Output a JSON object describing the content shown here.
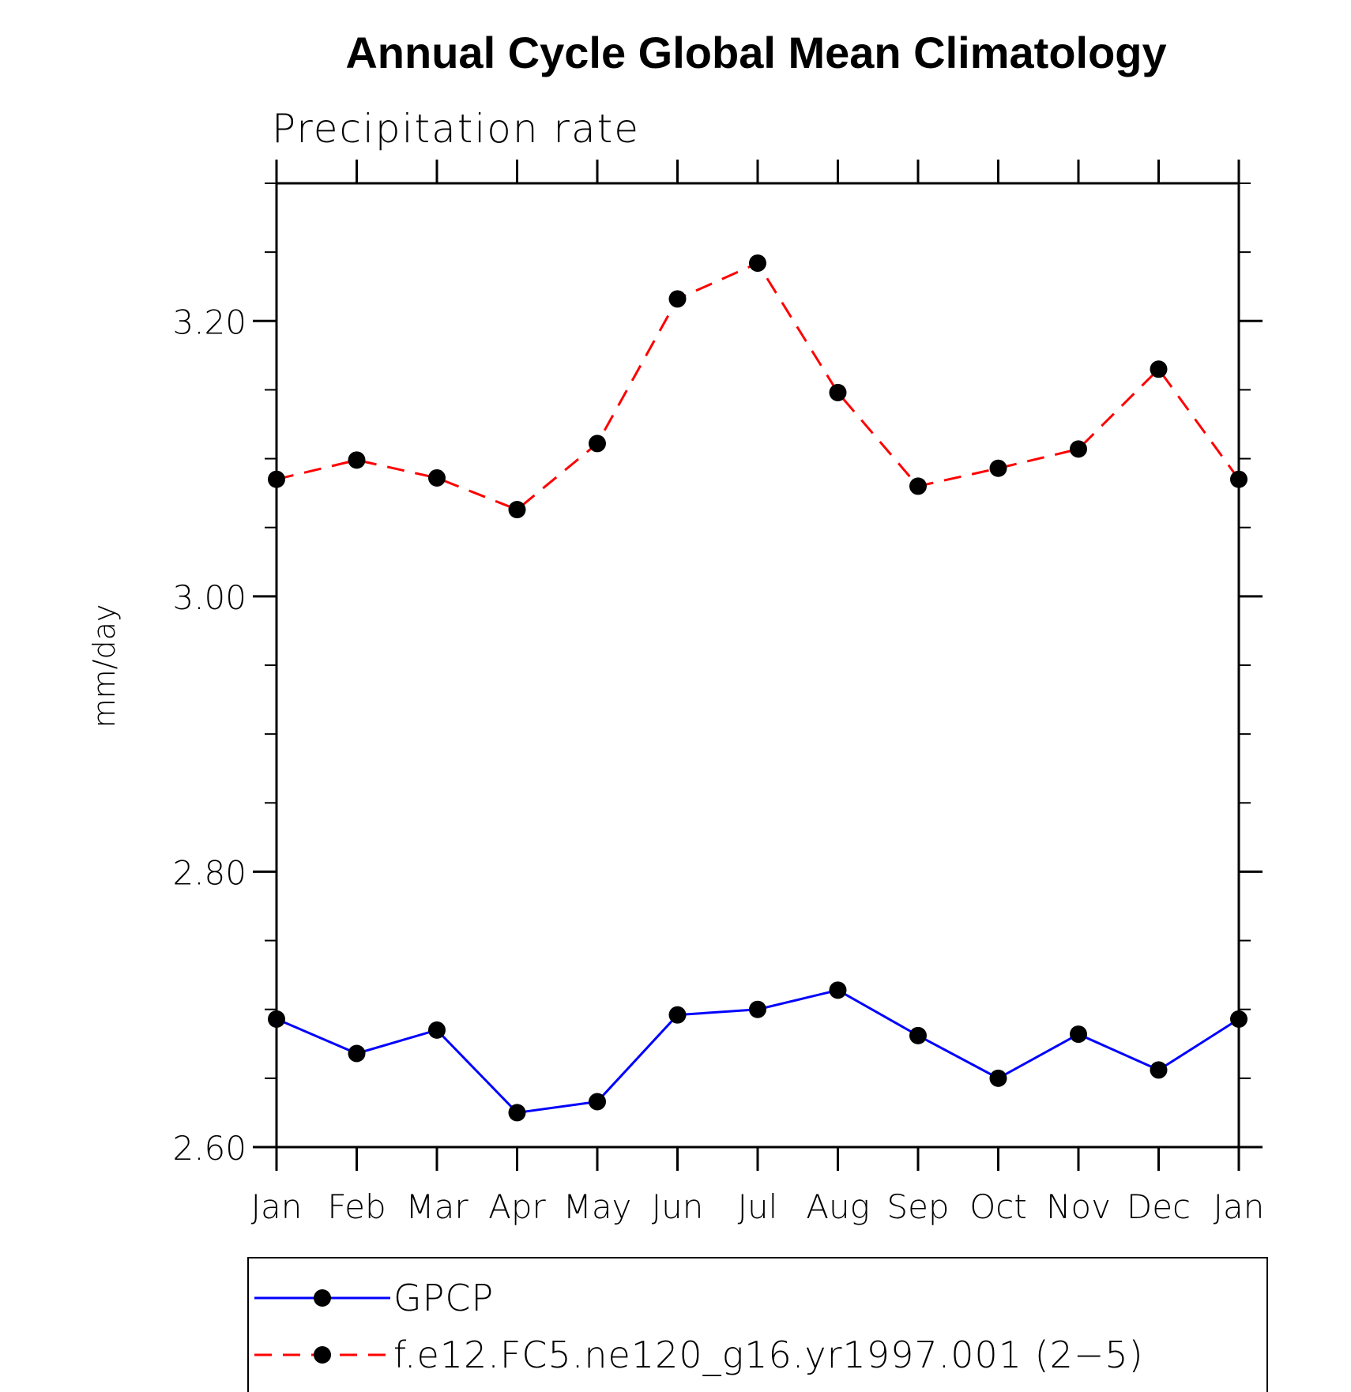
{
  "chart_data": {
    "type": "line",
    "title": "Annual Cycle Global Mean Climatology",
    "subtitle": "Precipitation rate",
    "ylabel": "mm/day",
    "xlabel": "",
    "categories": [
      "Jan",
      "Feb",
      "Mar",
      "Apr",
      "May",
      "Jun",
      "Jul",
      "Aug",
      "Sep",
      "Oct",
      "Nov",
      "Dec",
      "Jan"
    ],
    "ylim": [
      2.6,
      3.3
    ],
    "y_ticks": [
      "2.60",
      "2.80",
      "3.00",
      "3.20"
    ],
    "y_tick_values": [
      2.6,
      2.8,
      3.0,
      3.2
    ],
    "y_minor_step": 0.05,
    "grid": false,
    "legend_placement": "bottom",
    "series": [
      {
        "name": "GPCP",
        "color": "#0000ff",
        "dash": "solid",
        "marker": "circle",
        "values": [
          2.693,
          2.668,
          2.685,
          2.625,
          2.633,
          2.696,
          2.7,
          2.714,
          2.681,
          2.65,
          2.682,
          2.656,
          2.693
        ]
      },
      {
        "name": "f.e12.FC5.ne120_g16.yr1997.001 (2−5)",
        "color": "#ff0000",
        "dash": "dashed",
        "marker": "circle",
        "values": [
          3.085,
          3.099,
          3.086,
          3.063,
          3.111,
          3.216,
          3.242,
          3.148,
          3.08,
          3.093,
          3.107,
          3.165,
          3.085
        ]
      }
    ]
  }
}
